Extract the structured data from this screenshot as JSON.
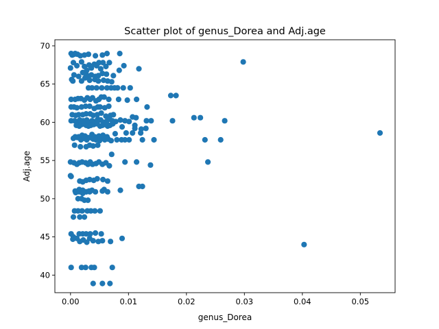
{
  "chart_data": {
    "type": "scatter",
    "title": "Scatter plot of genus_Dorea and Adj.age",
    "xlabel": "genus_Dorea",
    "ylabel": "Adj.age",
    "xlim": [
      -0.0027,
      0.056
    ],
    "ylim": [
      37.7,
      70.8
    ],
    "xticks": [
      0.0,
      0.01,
      0.02,
      0.03,
      0.04,
      0.05
    ],
    "xtick_labels": [
      "0.00",
      "0.01",
      "0.02",
      "0.03",
      "0.04",
      "0.05"
    ],
    "yticks": [
      40,
      45,
      50,
      55,
      60,
      65,
      70
    ],
    "ytick_labels": [
      "40",
      "45",
      "50",
      "55",
      "60",
      "65",
      "70"
    ],
    "grid": false,
    "marker_color": "#1f77b4",
    "series": [
      {
        "x": [
          0.0001,
          0.0003,
          0.0006,
          0.0008,
          0.0012,
          0.0017,
          0.0024,
          0.0031,
          0.0043,
          0.0055,
          0.0063,
          0.0085,
          0.0,
          0.0005,
          0.0011,
          0.0019,
          0.0024,
          0.0028,
          0.0032,
          0.0036,
          0.0041,
          0.0045,
          0.0049,
          0.0052,
          0.0056,
          0.0061,
          0.0067,
          0.0084,
          0.0092,
          0.0118,
          0.0298,
          0.0006,
          0.0014,
          0.0021,
          0.0027,
          0.0031,
          0.0036,
          0.0043,
          0.0048,
          0.0055,
          0.0062,
          0.0074,
          0.0002,
          0.0004,
          0.0019,
          0.0025,
          0.0033,
          0.0042,
          0.0048,
          0.0057,
          0.0064,
          0.0071,
          0.0031,
          0.0037,
          0.0045,
          0.0054,
          0.0063,
          0.007,
          0.0076,
          0.0081,
          0.0091,
          0.0103,
          0.0173,
          0.0182,
          0.0001,
          0.0008,
          0.0013,
          0.0018,
          0.0024,
          0.0029,
          0.0034,
          0.0038,
          0.0044,
          0.0049,
          0.0053,
          0.0058,
          0.0066,
          0.0083,
          0.0098,
          0.0114,
          0.0001,
          0.0006,
          0.0011,
          0.0019,
          0.0026,
          0.0033,
          0.0041,
          0.0047,
          0.0051,
          0.0059,
          0.0066,
          0.0132,
          0.0003,
          0.0009,
          0.0014,
          0.0021,
          0.0027,
          0.0034,
          0.0039,
          0.0046,
          0.0053,
          0.0061,
          0.0069,
          0.0074,
          0.0107,
          0.0113,
          0.0213,
          0.0224,
          0.0001,
          0.0007,
          0.0012,
          0.0016,
          0.0022,
          0.0028,
          0.0032,
          0.0037,
          0.0043,
          0.0047,
          0.0052,
          0.0057,
          0.0062,
          0.0067,
          0.0072,
          0.0078,
          0.0086,
          0.0094,
          0.0101,
          0.001,
          0.0015,
          0.0019,
          0.0023,
          0.0027,
          0.0031,
          0.0035,
          0.004,
          0.0046,
          0.0051,
          0.0055,
          0.006,
          0.0064,
          0.0068,
          0.0073,
          0.0089,
          0.0111,
          0.0131,
          0.0139,
          0.0176,
          0.0266,
          0.0008,
          0.0014,
          0.002,
          0.0025,
          0.003,
          0.0037,
          0.0042,
          0.0049,
          0.0056,
          0.0063,
          0.0077,
          0.0096,
          0.0107,
          0.0121,
          0.0005,
          0.0012,
          0.0018,
          0.0023,
          0.0028,
          0.0034,
          0.0039,
          0.0044,
          0.005,
          0.0054,
          0.0059,
          0.0065,
          0.007,
          0.008,
          0.0088,
          0.0094,
          0.0101,
          0.0111,
          0.0122,
          0.0124,
          0.013,
          0.0144,
          0.0232,
          0.0259,
          0.0534,
          0.0007,
          0.0017,
          0.0027,
          0.0033,
          0.0039,
          0.0047,
          0.0071,
          0.0,
          0.0006,
          0.0011,
          0.0015,
          0.002,
          0.0026,
          0.003,
          0.0034,
          0.0038,
          0.0044,
          0.0049,
          0.0055,
          0.0061,
          0.0067,
          0.0094,
          0.0114,
          0.0138,
          0.0237,
          0.0,
          0.0001,
          0.0016,
          0.0021,
          0.0027,
          0.0033,
          0.004,
          0.0046,
          0.0056,
          0.0064,
          0.0008,
          0.0015,
          0.0021,
          0.0027,
          0.0032,
          0.0037,
          0.0055,
          0.0009,
          0.0015,
          0.0021,
          0.0027,
          0.0033,
          0.0043,
          0.0058,
          0.0064,
          0.0086,
          0.0118,
          0.0124,
          0.0013,
          0.0019,
          0.0024,
          0.003,
          0.0007,
          0.0013,
          0.002,
          0.0029,
          0.0035,
          0.0042,
          0.0051,
          0.0005,
          0.0016,
          0.0024,
          0.0001,
          0.0005,
          0.0015,
          0.0021,
          0.0027,
          0.0034,
          0.0043,
          0.0053,
          0.0089,
          0.0004,
          0.0011,
          0.0016,
          0.0022,
          0.0028,
          0.0033,
          0.0039,
          0.0048,
          0.0055,
          0.0069,
          0.0403,
          0.0001,
          0.0019,
          0.0026,
          0.0036,
          0.0041,
          0.0072,
          0.0039,
          0.0055,
          0.0068
        ],
        "y": [
          69.0,
          68.8,
          68.9,
          69.0,
          68.9,
          68.7,
          68.8,
          68.9,
          68.7,
          68.8,
          69.0,
          69.0,
          67.1,
          67.8,
          67.4,
          67.9,
          67.3,
          66.8,
          67.5,
          67.1,
          67.6,
          67.4,
          67.8,
          67.0,
          67.8,
          67.3,
          67.8,
          66.8,
          67.4,
          67.0,
          67.9,
          66.2,
          66.0,
          66.5,
          66.3,
          66.0,
          66.2,
          66.0,
          66.1,
          66.4,
          66.3,
          66.1,
          65.6,
          65.4,
          65.4,
          65.8,
          65.5,
          65.6,
          65.4,
          65.5,
          65.4,
          65.3,
          64.5,
          64.5,
          64.5,
          64.5,
          64.5,
          64.5,
          64.5,
          64.5,
          64.5,
          64.5,
          63.5,
          63.5,
          63.0,
          63.0,
          63.1,
          63.1,
          62.9,
          63.2,
          63.0,
          63.2,
          62.8,
          63.0,
          63.3,
          63.3,
          63.0,
          63.0,
          62.9,
          63.0,
          62.0,
          62.0,
          61.9,
          62.0,
          62.1,
          62.1,
          61.8,
          62.0,
          62.0,
          61.9,
          62.1,
          62.0,
          61.0,
          60.9,
          61.0,
          61.0,
          61.1,
          61.1,
          60.9,
          61.0,
          61.2,
          60.8,
          60.9,
          61.0,
          60.7,
          60.6,
          60.6,
          60.6,
          60.2,
          60.2,
          60.1,
          60.3,
          60.2,
          60.3,
          60.0,
          60.2,
          60.1,
          60.4,
          60.3,
          60.0,
          60.1,
          60.4,
          60.2,
          60.1,
          60.3,
          60.2,
          60.1,
          59.6,
          59.5,
          59.7,
          59.8,
          59.6,
          59.5,
          59.6,
          59.7,
          59.8,
          59.5,
          59.6,
          59.7,
          59.5,
          59.6,
          59.8,
          59.4,
          59.6,
          60.2,
          60.2,
          60.2,
          60.2,
          58.1,
          58.1,
          58.3,
          58.2,
          58.0,
          58.4,
          58.1,
          58.2,
          58.3,
          58.1,
          58.5,
          58.6,
          58.6,
          58.6,
          57.9,
          58.0,
          57.7,
          57.9,
          57.7,
          58.0,
          57.8,
          57.7,
          57.6,
          57.9,
          57.7,
          57.8,
          57.6,
          57.7,
          57.7,
          57.7,
          57.7,
          59.2,
          59.1,
          57.7,
          59.2,
          57.7,
          57.7,
          57.7,
          58.6,
          57.0,
          56.8,
          56.8,
          57.0,
          56.9,
          57.0,
          55.8,
          54.8,
          54.7,
          54.5,
          54.7,
          54.8,
          54.7,
          54.5,
          54.8,
          54.5,
          54.6,
          54.8,
          54.5,
          54.7,
          54.3,
          54.8,
          54.8,
          54.4,
          54.8,
          53.0,
          52.9,
          52.3,
          52.2,
          52.4,
          52.5,
          52.4,
          52.6,
          52.5,
          52.3,
          51.0,
          51.2,
          51.1,
          50.9,
          51.0,
          51.1,
          51.0,
          50.8,
          50.9,
          50.7,
          50.9,
          50.9,
          50.9,
          51.2,
          50.9,
          51.1,
          51.6,
          51.6,
          50.0,
          50.0,
          49.8,
          49.8,
          48.4,
          48.4,
          48.4,
          48.4,
          48.4,
          48.4,
          48.4,
          47.6,
          47.6,
          47.6,
          45.4,
          45.0,
          45.4,
          45.4,
          45.4,
          45.4,
          45.5,
          45.4,
          44.8,
          44.7,
          44.8,
          44.4,
          44.6,
          44.3,
          44.8,
          44.5,
          44.4,
          44.5,
          44.4,
          44.0,
          41.0,
          41.0,
          41.0,
          41.0,
          41.0,
          41.0,
          38.9,
          38.9,
          38.9
        ]
      }
    ]
  }
}
